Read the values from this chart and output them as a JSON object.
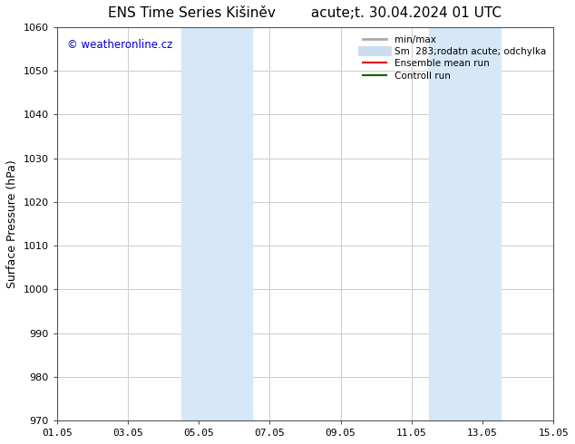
{
  "title_left": "ENS Time Series Kišiněv",
  "title_right": "acute;t. 30.04.2024 01 UTC",
  "ylabel": "Surface Pressure (hPa)",
  "ylim": [
    970,
    1060
  ],
  "yticks": [
    970,
    980,
    990,
    1000,
    1010,
    1020,
    1030,
    1040,
    1050,
    1060
  ],
  "xlim_start": "2024-05-01",
  "xlim_end": "2024-05-15",
  "xtick_labels": [
    "01.05",
    "03.05",
    "05.05",
    "07.05",
    "09.05",
    "11.05",
    "13.05",
    "15.05"
  ],
  "xtick_positions": [
    0,
    2,
    4,
    6,
    8,
    10,
    12,
    14
  ],
  "shaded_bands": [
    {
      "x_start": 3.5,
      "x_end": 5.5,
      "color": "#d6e8f7"
    },
    {
      "x_start": 10.5,
      "x_end": 12.5,
      "color": "#d6e8f7"
    }
  ],
  "watermark_text": "© weatheronline.cz",
  "watermark_color": "#0000cc",
  "legend_entries": [
    {
      "label": "min/max",
      "color": "#aaaaaa",
      "lw": 2
    },
    {
      "label": "Sm  283;rodatn acute; odchylka",
      "color": "#ccddee",
      "lw": 8
    },
    {
      "label": "Ensemble mean run",
      "color": "#dd0000",
      "lw": 1.5
    },
    {
      "label": "Controll run",
      "color": "#006600",
      "lw": 1.5
    }
  ],
  "bg_color": "#ffffff",
  "grid_color": "#cccccc",
  "spine_color": "#555555",
  "title_fontsize": 11,
  "label_fontsize": 9,
  "tick_fontsize": 8
}
